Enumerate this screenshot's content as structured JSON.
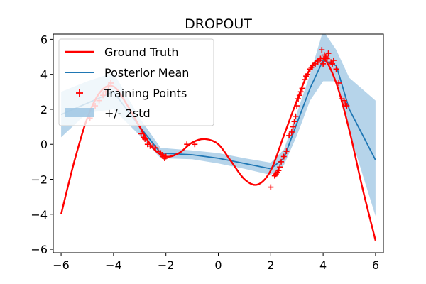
{
  "chart_data": {
    "type": "line",
    "title": "DROPOUT",
    "xlabel": "",
    "ylabel": "",
    "xlim": [
      -6.3,
      6.3
    ],
    "ylim": [
      -6.2,
      6.3
    ],
    "xticks": [
      -6,
      -4,
      -2,
      0,
      2,
      4,
      6
    ],
    "yticks": [
      -6,
      -4,
      -2,
      0,
      2,
      4,
      6
    ],
    "xtick_labels": [
      "−6",
      "−4",
      "−2",
      "0",
      "2",
      "4",
      "6"
    ],
    "ytick_labels": [
      "−6",
      "−4",
      "−2",
      "0",
      "2",
      "4",
      "6"
    ],
    "grid": false,
    "legend_position": "upper-left",
    "legend": [
      {
        "label": "Ground Truth",
        "kind": "line",
        "color": "#ff0000"
      },
      {
        "label": "Posterior Mean",
        "kind": "line",
        "color": "#1f77b4"
      },
      {
        "label": "Training Points",
        "kind": "marker",
        "color": "#ff0000"
      },
      {
        "label": "+/- 2std",
        "kind": "band",
        "color": "#9ec5e3"
      }
    ],
    "ground_truth": {
      "color": "#ff0000",
      "x": [
        -6.0,
        -5.5,
        -5.0,
        -4.5,
        -4.0,
        -3.5,
        -3.0,
        -2.5,
        -2.0,
        -1.5,
        -1.0,
        -0.5,
        0.0,
        0.5,
        1.0,
        1.5,
        2.0,
        2.5,
        3.0,
        3.5,
        4.0,
        4.5,
        5.0,
        5.5,
        6.0
      ],
      "y": [
        -4.0,
        -1.0,
        1.5,
        3.0,
        3.3,
        2.3,
        1.0,
        -0.2,
        -0.7,
        -0.5,
        0.1,
        0.3,
        0.0,
        -1.0,
        -2.0,
        -2.3,
        -1.5,
        0.5,
        2.5,
        4.3,
        4.9,
        3.5,
        0.8,
        -2.5,
        -5.5
      ]
    },
    "posterior_mean": {
      "color": "#1f77b4",
      "x": [
        -6.0,
        -4.0,
        -3.0,
        -2.2,
        -1.0,
        0.0,
        1.0,
        2.0,
        2.5,
        3.0,
        3.5,
        4.0,
        4.5,
        5.0,
        6.0
      ],
      "y": [
        1.7,
        3.0,
        1.0,
        -0.5,
        -0.6,
        -0.8,
        -1.1,
        -1.4,
        -0.8,
        1.2,
        3.2,
        4.8,
        4.5,
        2.0,
        -0.9
      ]
    },
    "std_band": {
      "color": "#9ec5e3",
      "x": [
        -6.0,
        -5.0,
        -4.0,
        -3.0,
        -2.2,
        -1.0,
        0.0,
        1.0,
        2.0,
        2.5,
        3.0,
        3.5,
        4.0,
        4.5,
        5.0,
        6.0
      ],
      "upper": [
        3.0,
        3.6,
        4.1,
        1.5,
        -0.2,
        -0.35,
        -0.5,
        -0.8,
        -1.05,
        -0.3,
        1.8,
        4.0,
        6.5,
        5.4,
        3.8,
        2.5
      ],
      "lower": [
        0.4,
        1.8,
        2.0,
        0.5,
        -0.8,
        -0.85,
        -1.1,
        -1.4,
        -1.75,
        -1.2,
        0.5,
        2.5,
        3.6,
        3.6,
        0.7,
        -4.1
      ]
    },
    "training_points": {
      "color": "#ff0000",
      "x": [
        -4.9,
        -4.7,
        -4.55,
        -4.4,
        -4.3,
        -4.2,
        -4.1,
        -2.95,
        -2.85,
        -2.8,
        -2.7,
        -2.6,
        -2.5,
        -2.4,
        -2.3,
        -2.2,
        -2.15,
        -2.1,
        -2.05,
        -2.0,
        -1.2,
        -0.9,
        2.0,
        2.15,
        2.2,
        2.25,
        2.3,
        2.35,
        2.4,
        2.5,
        2.6,
        2.7,
        2.8,
        2.85,
        2.9,
        2.95,
        3.0,
        3.05,
        3.1,
        3.15,
        3.2,
        3.3,
        3.35,
        3.4,
        3.5,
        3.55,
        3.6,
        3.7,
        3.8,
        3.85,
        3.9,
        3.95,
        4.0,
        4.05,
        4.1,
        4.15,
        4.2,
        4.3,
        4.35,
        4.4,
        4.5,
        4.6,
        4.7,
        4.8,
        4.85,
        4.9
      ],
      "y": [
        1.5,
        2.2,
        2.5,
        2.8,
        3.0,
        3.3,
        3.5,
        0.6,
        0.4,
        0.3,
        0.0,
        -0.1,
        -0.1,
        -0.2,
        -0.4,
        -0.5,
        -0.6,
        -0.7,
        -0.8,
        -0.7,
        0.0,
        0.0,
        -2.45,
        -1.8,
        -1.7,
        -1.6,
        -1.5,
        -1.3,
        -1.0,
        -0.7,
        -0.4,
        0.5,
        0.7,
        1.0,
        1.3,
        1.6,
        2.2,
        2.6,
        2.8,
        3.0,
        3.2,
        3.7,
        3.9,
        4.0,
        4.3,
        4.4,
        4.5,
        4.6,
        4.7,
        4.8,
        4.9,
        5.4,
        4.6,
        5.1,
        5.0,
        4.9,
        5.2,
        4.7,
        4.6,
        4.8,
        4.3,
        3.5,
        2.6,
        2.5,
        2.3,
        2.2
      ]
    }
  }
}
